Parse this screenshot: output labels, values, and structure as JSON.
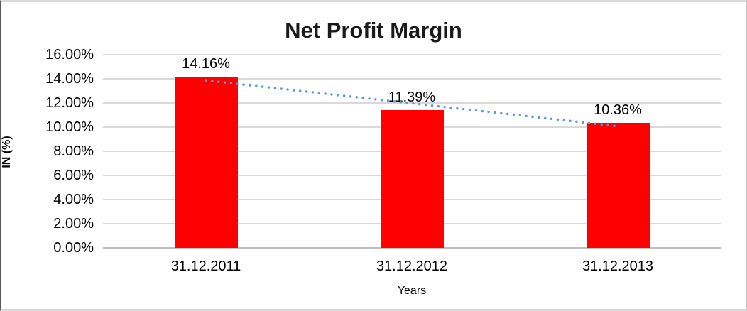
{
  "chart_data": {
    "type": "bar",
    "title": "Net Profit Margin",
    "categories": [
      "31.12.2011",
      "31.12.2012",
      "31.12.2013"
    ],
    "values": [
      14.16,
      11.39,
      10.36
    ],
    "data_labels": [
      "14.16%",
      "11.39%",
      "10.36%"
    ],
    "xlabel": "Years",
    "ylabel": "IN (%)",
    "ylim": [
      0,
      16
    ],
    "y_tick_step": 2,
    "y_tick_labels": [
      "0.00%",
      "2.00%",
      "4.00%",
      "6.00%",
      "8.00%",
      "10.00%",
      "12.00%",
      "14.00%",
      "16.00%"
    ],
    "grid": true,
    "legend": "none",
    "colors": {
      "bar": "#FF0000",
      "trendline": "#5B9BD5",
      "gridline": "#D9D9D9",
      "axis_line": "#BFBFBF",
      "title_text": "#1A1A1A",
      "tick_text": "#000000"
    },
    "trendline": {
      "type": "linear",
      "style": "dotted",
      "color": "#5B9BD5",
      "start_value": 13.87,
      "end_value": 10.07
    }
  }
}
